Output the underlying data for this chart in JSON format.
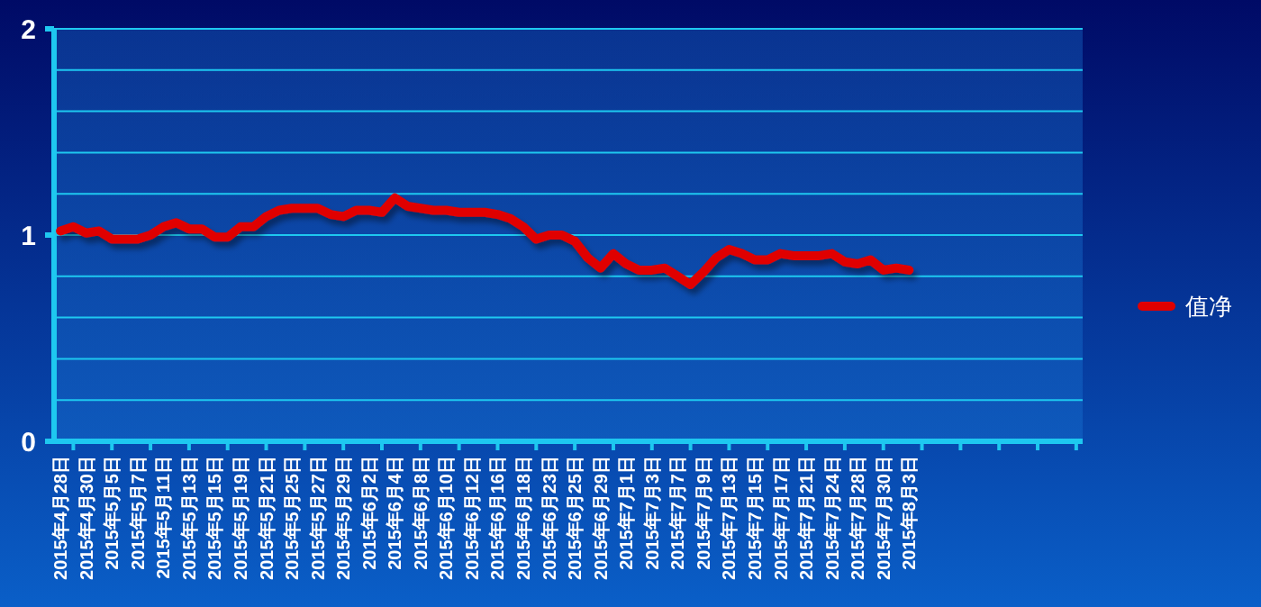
{
  "chart_data": {
    "type": "line",
    "categories": [
      "2015年4月28日",
      null,
      "2015年4月30日",
      null,
      "2015年5月5日",
      null,
      "2015年5月7日",
      null,
      "2015年5月11日",
      null,
      "2015年5月13日",
      null,
      "2015年5月15日",
      null,
      "2015年5月19日",
      null,
      "2015年5月21日",
      null,
      "2015年5月25日",
      null,
      "2015年5月27日",
      null,
      "2015年5月29日",
      null,
      "2015年6月2日",
      null,
      "2015年6月4日",
      null,
      "2015年6月8日",
      null,
      "2015年6月10日",
      null,
      "2015年6月12日",
      null,
      "2015年6月16日",
      null,
      "2015年6月18日",
      null,
      "2015年6月23日",
      null,
      "2015年6月25日",
      null,
      "2015年6月29日",
      null,
      "2015年7月1日",
      null,
      "2015年7月3日",
      null,
      "2015年7月7日",
      null,
      "2015年7月9日",
      null,
      "2015年7月13日",
      null,
      "2015年7月15日",
      null,
      "2015年7月17日",
      null,
      "2015年7月21日",
      null,
      "2015年7月24日",
      null,
      "2015年7月28日",
      null,
      "2015年7月30日",
      null,
      "2015年8月3日",
      null,
      null,
      null,
      null,
      null,
      null,
      null,
      null,
      null,
      null,
      null,
      null,
      null
    ],
    "series": [
      {
        "name": "值净",
        "color": "#e00000",
        "values": [
          1.02,
          1.04,
          1.01,
          1.02,
          0.98,
          0.98,
          0.98,
          1.0,
          1.04,
          1.06,
          1.03,
          1.03,
          0.99,
          0.99,
          1.04,
          1.04,
          1.09,
          1.12,
          1.13,
          1.13,
          1.13,
          1.1,
          1.09,
          1.12,
          1.12,
          1.11,
          1.18,
          1.14,
          1.13,
          1.12,
          1.12,
          1.11,
          1.11,
          1.11,
          1.1,
          1.08,
          1.04,
          0.98,
          1.0,
          1.0,
          0.97,
          0.89,
          0.84,
          0.91,
          0.86,
          0.83,
          0.83,
          0.84,
          0.8,
          0.76,
          0.82,
          0.89,
          0.93,
          0.91,
          0.88,
          0.88,
          0.91,
          0.9,
          0.9,
          0.9,
          0.91,
          0.87,
          0.86,
          0.88,
          0.83,
          0.84,
          0.83,
          null,
          null,
          null,
          null,
          null,
          null,
          null,
          null,
          null,
          null,
          null,
          null,
          null
        ]
      }
    ],
    "ylim": [
      0,
      2
    ],
    "yticks": [
      0,
      {
        "value": 0.2,
        "label": null
      },
      {
        "value": 0.4,
        "label": null
      },
      {
        "value": 0.6,
        "label": null
      },
      {
        "value": 0.8,
        "label": null
      },
      1,
      {
        "value": 1.2,
        "label": null
      },
      {
        "value": 1.4,
        "label": null
      },
      {
        "value": 1.6,
        "label": null
      },
      {
        "value": 1.8,
        "label": null
      },
      2
    ],
    "grid": true,
    "legend": "right",
    "marker": "none",
    "line_style": "solid"
  }
}
